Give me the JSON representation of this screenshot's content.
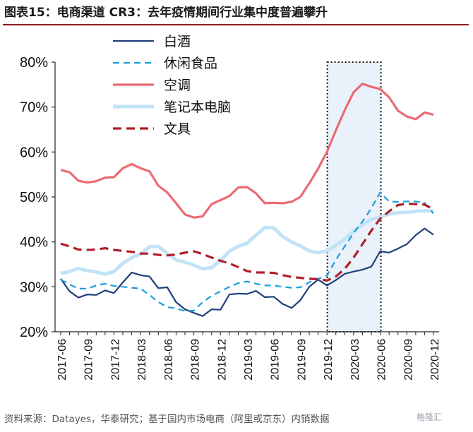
{
  "header": {
    "figure_label": "图表15：",
    "title": "电商渠道 CR3：去年疫情期间行业集中度普遍攀升"
  },
  "footer": {
    "source": "资料来源：Datayes，华泰研究；基于国内市场电商（阿里或京东）内销数据",
    "watermark": "格隆汇"
  },
  "chart_data": {
    "type": "line",
    "title": "电商渠道 CR3：去年疫情期间行业集中度普遍攀升",
    "xlabel": "",
    "ylabel": "",
    "ylim": [
      20,
      80
    ],
    "y_ticks": [
      "20%",
      "30%",
      "40%",
      "50%",
      "60%",
      "70%",
      "80%"
    ],
    "y_tick_values": [
      20,
      30,
      40,
      50,
      60,
      70,
      80
    ],
    "x_tick_labels": [
      "2017-06",
      "2017-09",
      "2017-12",
      "2018-03",
      "2018-06",
      "2018-09",
      "2018-12",
      "2019-03",
      "2019-06",
      "2019-09",
      "2019-12",
      "2020-03",
      "2020-06",
      "2020-09",
      "2020-12"
    ],
    "x_tick_index": [
      0,
      3,
      6,
      9,
      12,
      15,
      18,
      21,
      24,
      27,
      30,
      33,
      36,
      39,
      42
    ],
    "legend_position": "top-left",
    "highlight_region": {
      "from_index": 30,
      "to_index": 36
    },
    "series": [
      {
        "name": "白酒",
        "color": "#1f3f7a",
        "dash": "solid",
        "values": [
          31.8,
          29,
          27.6,
          28.3,
          28.2,
          29.2,
          28.6,
          31,
          33.2,
          32.6,
          32.3,
          29.7,
          29.9,
          26.6,
          25,
          24.2,
          23.5,
          25,
          24.9,
          28.3,
          28.5,
          28.4,
          29.1,
          27.7,
          27.8,
          26.2,
          25.3,
          27,
          30,
          31.6,
          30.3,
          31.5,
          32.9,
          33.4,
          33.8,
          34.5,
          37.9,
          37.6,
          38.5,
          39.5,
          41.5,
          43,
          41.6
        ]
      },
      {
        "name": "休闲食品",
        "color": "#1a9ee0",
        "dash": "dashed",
        "values": [
          31.6,
          30.5,
          29.6,
          29.6,
          30.3,
          30.7,
          30.2,
          30,
          29.8,
          29.6,
          28.2,
          26.6,
          25.5,
          25.2,
          24.6,
          24.7,
          26.6,
          28,
          29,
          30,
          30.8,
          31.2,
          30.7,
          30.3,
          30.3,
          30,
          29.8,
          29.9,
          31,
          31.8,
          32.5,
          36,
          39,
          42,
          44.5,
          47.5,
          51,
          49,
          48.9,
          49,
          49,
          48.7,
          46.3
        ]
      },
      {
        "name": "空调",
        "color": "#ec6a72",
        "dash": "solid",
        "values": [
          56,
          55.5,
          53.6,
          53.2,
          53.5,
          54.3,
          54.4,
          56.4,
          57.3,
          56.4,
          55.7,
          52.5,
          51,
          48.6,
          46.1,
          45.4,
          45.7,
          48.4,
          49.3,
          50.2,
          52.1,
          52.2,
          50.8,
          48.6,
          48.7,
          48.6,
          48.9,
          50,
          53,
          56.3,
          60,
          64.8,
          69.3,
          73.3,
          75.2,
          74.5,
          74,
          72.2,
          69.2,
          67.9,
          67.3,
          68.8,
          68.3
        ]
      },
      {
        "name": "笔记本电脑",
        "color": "#c2e3f6",
        "dash": "solid",
        "values": [
          33,
          33.4,
          34.1,
          33.6,
          33.3,
          32.8,
          33.4,
          35.2,
          36.5,
          37.3,
          38.9,
          39,
          37.4,
          36,
          35.5,
          34.8,
          34,
          34.3,
          35.8,
          37.9,
          39,
          39.7,
          41.5,
          43.2,
          43.1,
          41.2,
          40,
          39.1,
          38,
          37.6,
          38,
          39.2,
          40.6,
          42.4,
          43.8,
          45,
          45.5,
          46.2,
          46.5,
          46.6,
          46.8,
          46.9,
          46.9
        ]
      },
      {
        "name": "文具",
        "color": "#b01e28",
        "dash": "dashed",
        "values": [
          39.6,
          39,
          38.3,
          38.2,
          38.3,
          38.6,
          38.2,
          38,
          37.8,
          37.4,
          37.4,
          37.1,
          37,
          37.2,
          37.6,
          37.9,
          37.3,
          36.5,
          35.8,
          35.2,
          34.4,
          33.5,
          33.2,
          33.2,
          33.1,
          32.6,
          32.2,
          32,
          31.8,
          31.7,
          31.4,
          32.3,
          34,
          36.5,
          39.5,
          42.5,
          45.2,
          46.8,
          48.2,
          48.5,
          48.4,
          48.3,
          47.2
        ]
      }
    ]
  }
}
